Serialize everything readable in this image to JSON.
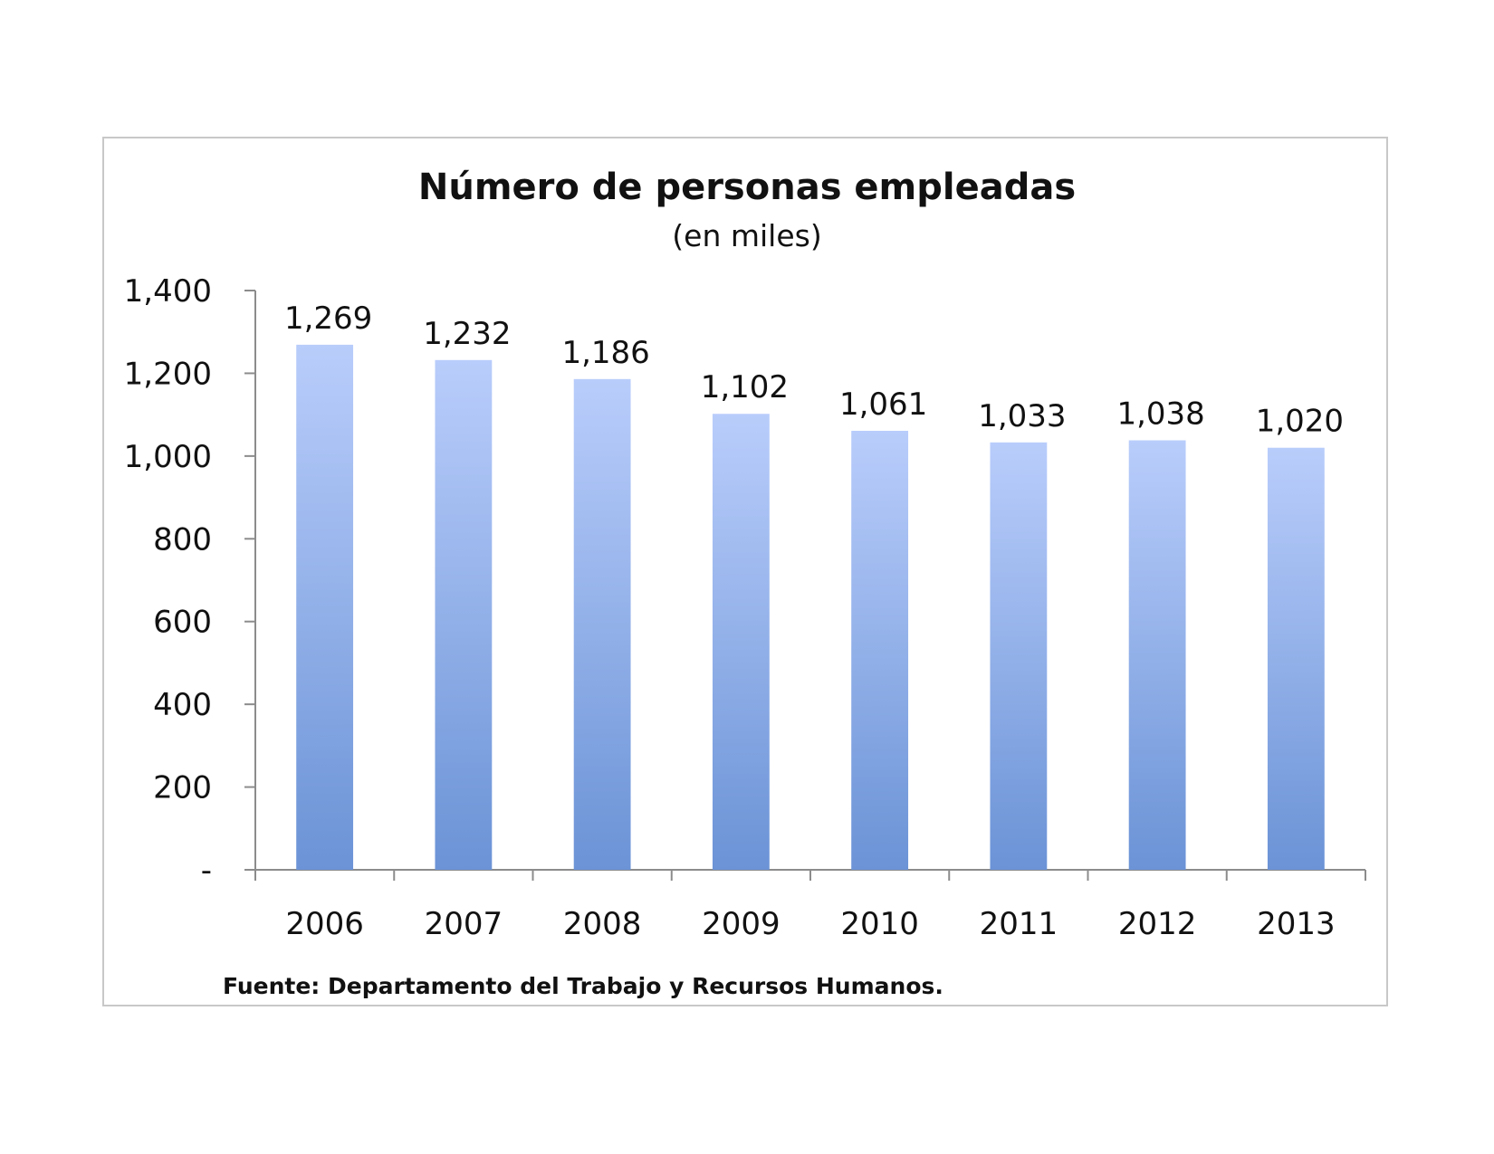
{
  "chart_data": {
    "type": "bar",
    "title": "Número de personas empleadas",
    "subtitle": "(en miles)",
    "categories": [
      "2006",
      "2007",
      "2008",
      "2009",
      "2010",
      "2011",
      "2012",
      "2013"
    ],
    "values": [
      1269,
      1232,
      1186,
      1102,
      1061,
      1033,
      1038,
      1020
    ],
    "data_labels": [
      "1,269",
      "1,232",
      "1,186",
      "1,102",
      "1,061",
      "1,033",
      "1,038",
      "1,020"
    ],
    "ylim": [
      0,
      1400
    ],
    "yticks": [
      0,
      200,
      400,
      600,
      800,
      1000,
      1200,
      1400
    ],
    "ytick_labels": [
      "-",
      "200",
      "400",
      "600",
      "800",
      "1,000",
      "1,200",
      "1,400"
    ],
    "grid": false,
    "legend": "none",
    "bar_gradient": [
      "#b9cdfb",
      "#6b93d6"
    ],
    "source": "Fuente: Departamento del Trabajo y Recursos Humanos."
  }
}
